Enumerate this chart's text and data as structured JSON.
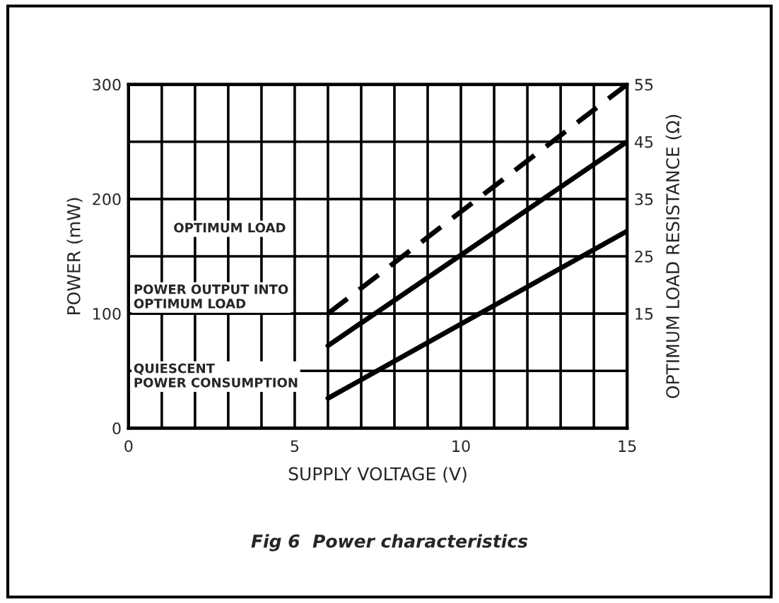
{
  "chart_data": {
    "type": "line",
    "xlabel": "SUPPLY VOLTAGE (V)",
    "ylabel": "POWER (mW)",
    "y2label": "OPTIMUM LOAD RESISTANCE (Ω)",
    "xlim": [
      0,
      15
    ],
    "xticks": [
      0,
      {
        "value": 1,
        "label": null
      },
      {
        "value": 2,
        "label": null
      },
      {
        "value": 3,
        "label": null
      },
      {
        "value": 4,
        "label": null
      },
      5,
      {
        "value": 6,
        "label": null
      },
      {
        "value": 7,
        "label": null
      },
      {
        "value": 8,
        "label": null
      },
      {
        "value": 9,
        "label": null
      },
      10,
      {
        "value": 11,
        "label": null
      },
      {
        "value": 12,
        "label": null
      },
      {
        "value": 13,
        "label": null
      },
      {
        "value": 14,
        "label": null
      },
      15
    ],
    "ylim": [
      0,
      300
    ],
    "yticks": [
      0,
      {
        "value": 50,
        "label": null
      },
      100,
      {
        "value": 150,
        "label": null
      },
      200,
      {
        "value": 250,
        "label": null
      },
      300
    ],
    "y2lim": [
      -5,
      55
    ],
    "y2ticks": [
      15,
      25,
      35,
      45,
      55
    ],
    "grid": true,
    "legend": false,
    "x": [
      6,
      15
    ],
    "series": [
      {
        "color": "#000000",
        "values": [
          15,
          55
        ],
        "axis": "y2",
        "line_style": "dashed"
      },
      {
        "color": "#000000",
        "values": [
          72,
          250
        ],
        "line_style": "solid"
      },
      {
        "color": "#000000",
        "values": [
          26,
          172
        ],
        "line_style": "solid"
      }
    ],
    "annotations": [
      "OPTIMUM LOAD",
      "POWER OUTPUT INTO\nOPTIMUM LOAD",
      "QUIESCENT\nPOWER CONSUMPTION",
      "Fig 6  Power characteristics"
    ]
  }
}
